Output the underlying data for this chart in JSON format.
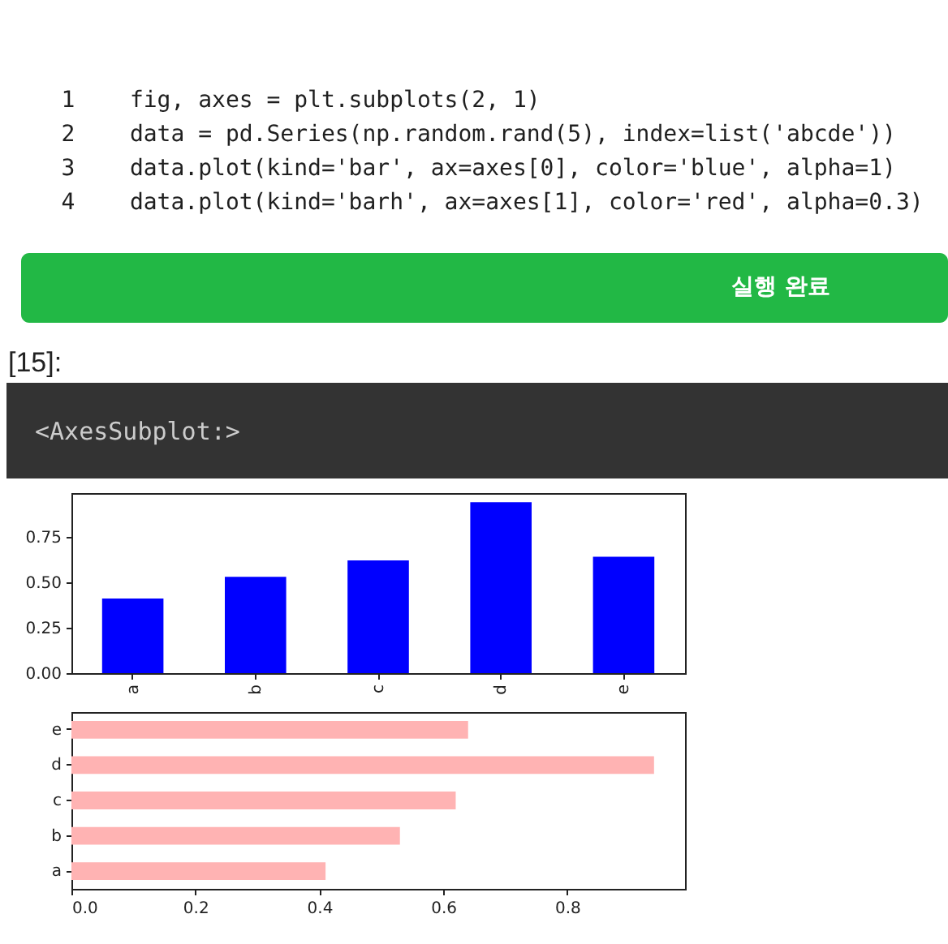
{
  "chart_data": [
    {
      "type": "other",
      "annotations": [
        "1    fig, axes = plt.subplots(2, 1)",
        "2    data = pd.Series(np.random.rand(5), index=list('abcde'))",
        "3    data.plot(kind='bar', ax=axes[0], color='blue', alpha=1)",
        "4    data.plot(kind='barh', ax=axes[1], color='red', alpha=0.3)",
        "실행 완료",
        "[15]:",
        "<AxesSubplot:>"
      ]
    },
    {
      "type": "bar",
      "categories": [
        "a",
        "b",
        "c",
        "d",
        "e"
      ],
      "values": [
        0.41,
        0.53,
        0.62,
        0.94,
        0.64
      ],
      "color": "#0000ff",
      "ylim": [
        0,
        0.99
      ],
      "yticks": [
        {
          "value": 0,
          "label": "0.00"
        },
        0.25,
        {
          "value": 0.5,
          "label": "0.50"
        },
        0.75
      ],
      "grid": false
    },
    {
      "type": "bar",
      "orientation": "horizontal",
      "categories": [
        "e",
        "d",
        "c",
        "b",
        "a"
      ],
      "values": [
        0.64,
        0.94,
        0.62,
        0.53,
        0.41
      ],
      "color": "#ffb3b3",
      "xlim": [
        0,
        0.99
      ],
      "xticks": [
        {
          "value": 0,
          "label": "0.0"
        },
        0.2,
        0.4,
        0.6,
        0.8
      ],
      "grid": false
    }
  ]
}
